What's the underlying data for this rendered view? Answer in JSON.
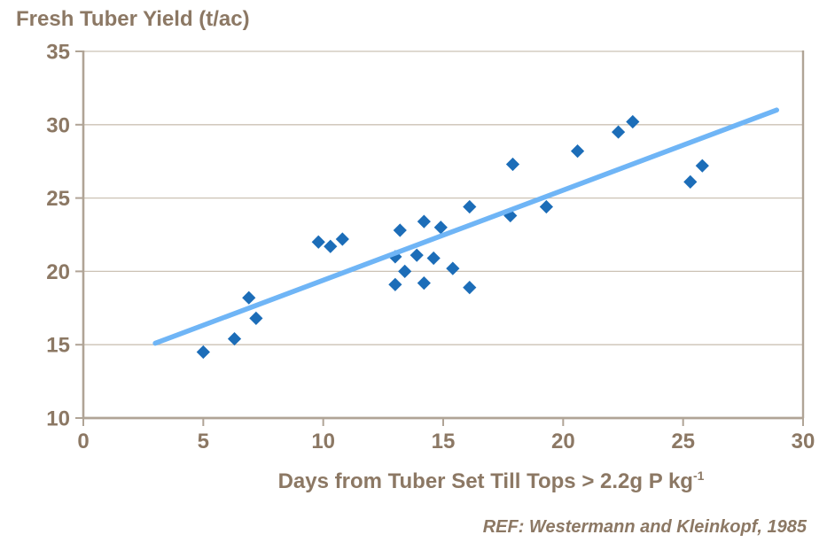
{
  "title": "Fresh Tuber Yield (t/ac)",
  "xlabel": {
    "main": "Days from Tuber Set Till Tops > 2.2g P kg",
    "sup": "-1"
  },
  "ref": "REF: Westermann and Kleinkopf, 1985",
  "colors": {
    "marker": "#1c6db8",
    "trendline": "#6fb5f6",
    "text": "#8c7864",
    "axis": "#b0a496",
    "gridline": "#ccc2b4",
    "background": "#ffffff"
  },
  "chart_data": {
    "type": "scatter",
    "title": "Fresh Tuber Yield (t/ac)",
    "xlabel": "Days from Tuber Set Till Tops > 2.2g P kg-1",
    "ylabel": "Fresh Tuber Yield (t/ac)",
    "xlim": [
      0,
      30
    ],
    "ylim": [
      10,
      35
    ],
    "xticks": [
      0,
      5,
      10,
      15,
      20,
      25,
      30
    ],
    "yticks": [
      10,
      15,
      20,
      25,
      30,
      35
    ],
    "grid": "horizontal",
    "legend": "none",
    "marker": "diamond",
    "points": [
      [
        5.0,
        14.5
      ],
      [
        6.3,
        15.4
      ],
      [
        6.9,
        18.2
      ],
      [
        7.2,
        16.8
      ],
      [
        9.8,
        22.0
      ],
      [
        10.3,
        21.7
      ],
      [
        10.8,
        22.2
      ],
      [
        13.0,
        21.0
      ],
      [
        13.0,
        19.1
      ],
      [
        13.2,
        22.8
      ],
      [
        13.4,
        20.0
      ],
      [
        13.9,
        21.1
      ],
      [
        14.2,
        23.4
      ],
      [
        14.2,
        19.2
      ],
      [
        14.6,
        20.9
      ],
      [
        14.9,
        23.0
      ],
      [
        15.4,
        20.2
      ],
      [
        16.1,
        24.4
      ],
      [
        16.1,
        18.9
      ],
      [
        17.8,
        23.8
      ],
      [
        17.9,
        27.3
      ],
      [
        19.3,
        24.4
      ],
      [
        20.6,
        28.2
      ],
      [
        22.3,
        29.5
      ],
      [
        22.9,
        30.2
      ],
      [
        25.3,
        26.1
      ],
      [
        25.8,
        27.2
      ]
    ],
    "trendline": {
      "x": [
        3.0,
        28.9
      ],
      "y": [
        15.1,
        31.0
      ]
    }
  }
}
